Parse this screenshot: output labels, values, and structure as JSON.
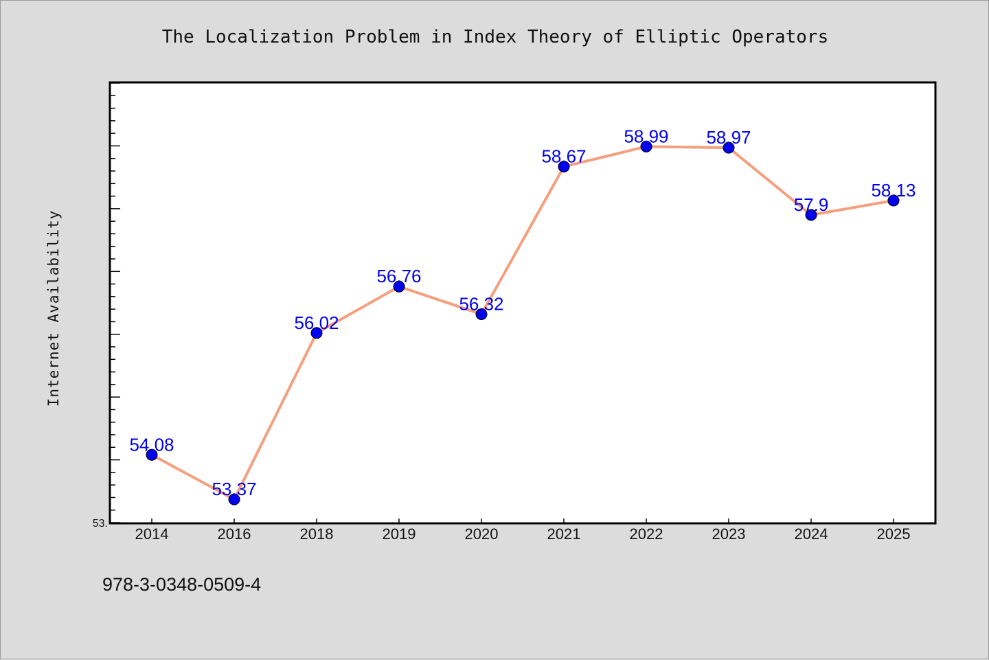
{
  "chart_data": {
    "type": "line",
    "title": "The Localization Problem in Index Theory of Elliptic Operators",
    "xlabel": "",
    "ylabel": "Internet Availability",
    "categories": [
      "2014",
      "2016",
      "2018",
      "2019",
      "2020",
      "2021",
      "2022",
      "2023",
      "2024",
      "2025"
    ],
    "series": [
      {
        "values": [
          54.08,
          53.37,
          56.02,
          56.76,
          56.32,
          58.67,
          58.99,
          58.97,
          57.9,
          58.13
        ]
      }
    ],
    "data_labels": [
      "54.08",
      "53.37",
      "56.02",
      "56.76",
      "56.32",
      "58.67",
      "58.99",
      "58.97",
      "57.9",
      "58.13"
    ],
    "ylim": [
      53.0,
      60.0
    ],
    "y_tick_label": "53.",
    "grid": false,
    "colors": {
      "line": "#f4a07e",
      "marker": "#0000ee",
      "label": "#0000ee",
      "background": "#dcdcdc",
      "plot": "#ffffff"
    }
  },
  "footer": {
    "isbn": "978-3-0348-0509-4"
  }
}
